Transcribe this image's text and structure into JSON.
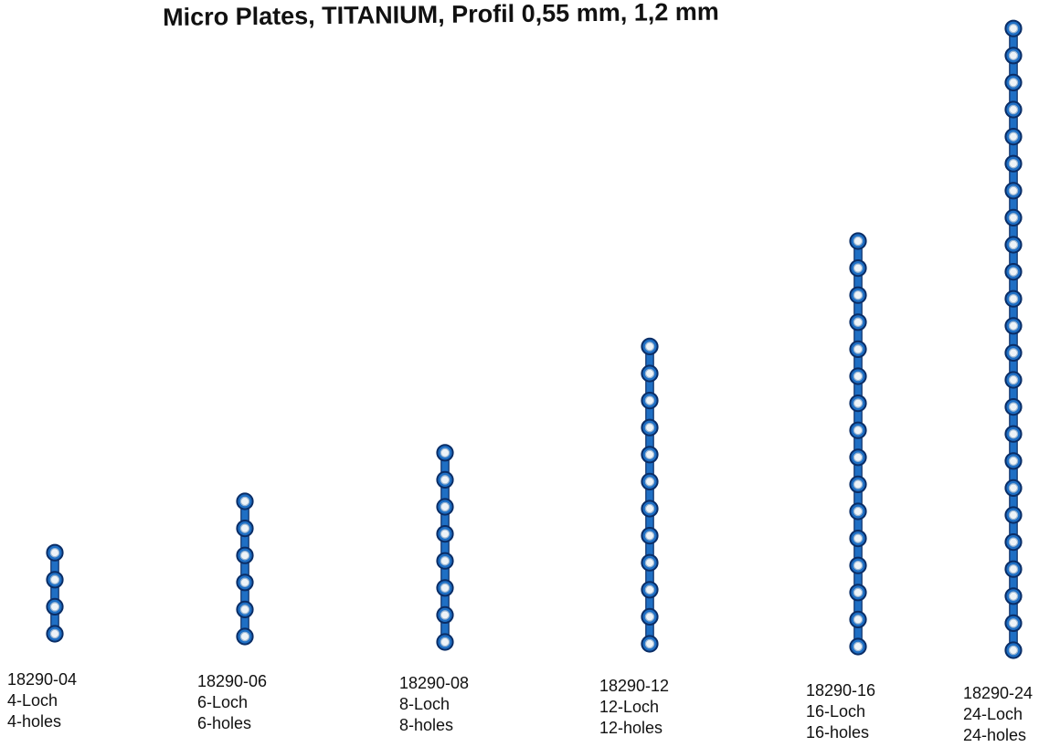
{
  "title": "Micro Plates, TITANIUM, Profil 0,55 mm, 1,2 mm",
  "colors": {
    "plate": "#1f6fc4",
    "plate_edge": "#0a2d66",
    "hole": "#eef3f7",
    "hole_ring": "#9bb7d4"
  },
  "plates": [
    {
      "code": "18290-04",
      "label_de": "4-Loch",
      "label_en": "4-holes",
      "holes": 4
    },
    {
      "code": "18290-06",
      "label_de": "6-Loch",
      "label_en": "6-holes",
      "holes": 6
    },
    {
      "code": "18290-08",
      "label_de": "8-Loch",
      "label_en": "8-holes",
      "holes": 8
    },
    {
      "code": "18290-12",
      "label_de": "12-Loch",
      "label_en": "12-holes",
      "holes": 12
    },
    {
      "code": "18290-16",
      "label_de": "16-Loch",
      "label_en": "16-holes",
      "holes": 16
    },
    {
      "code": "18290-24",
      "label_de": "24-Loch",
      "label_en": "24-holes",
      "holes": 24
    }
  ]
}
